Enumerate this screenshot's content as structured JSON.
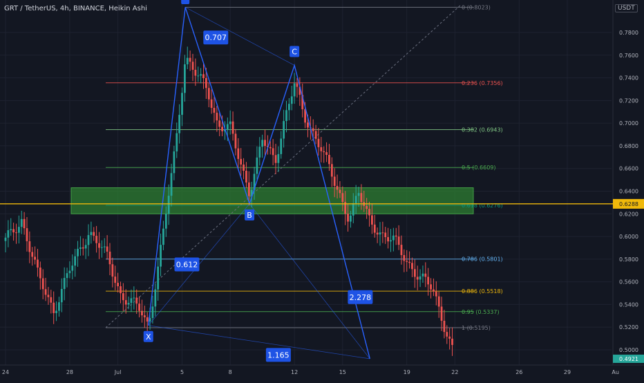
{
  "header": {
    "symbol": "GRT / TetherUS, 4h, BINANCE, Heikin Ashi"
  },
  "axis": {
    "unit": "USDT"
  },
  "chart_data": {
    "type": "candlestick",
    "price_ticks": [
      "0.7800",
      "0.7600",
      "0.7400",
      "0.7200",
      "0.7000",
      "0.6800",
      "0.6600",
      "0.6400",
      "0.6200",
      "0.6000",
      "0.5800",
      "0.5600",
      "0.5400",
      "0.5200",
      "0.5000"
    ],
    "price_tick_values": [
      0.78,
      0.76,
      0.74,
      0.72,
      0.7,
      0.68,
      0.66,
      0.64,
      0.62,
      0.6,
      0.58,
      0.56,
      0.54,
      0.52,
      0.5
    ],
    "time_ticks": [
      {
        "label": "24",
        "day": 24
      },
      {
        "label": "28",
        "day": 28
      },
      {
        "label": "Jul",
        "day": 31
      },
      {
        "label": "5",
        "day": 35
      },
      {
        "label": "8",
        "day": 38
      },
      {
        "label": "12",
        "day": 42
      },
      {
        "label": "15",
        "day": 45
      },
      {
        "label": "19",
        "day": 49
      },
      {
        "label": "22",
        "day": 52
      },
      {
        "label": "26",
        "day": 56
      },
      {
        "label": "29",
        "day": 59
      },
      {
        "label": "Au",
        "day": 62
      }
    ],
    "current_price": {
      "label": "0.6288",
      "value": 0.6288,
      "color": "#f0b90b"
    },
    "last_price": {
      "label": "0.4921",
      "value": 0.4921
    },
    "fib_levels": [
      {
        "label": "0 (0.8023)",
        "value": 0.8023,
        "color": "#787b86"
      },
      {
        "label": "0.236 (0.7356)",
        "value": 0.7356,
        "color": "#ef5350"
      },
      {
        "label": "0.382 (0.6943)",
        "value": 0.6943,
        "color": "#81c784"
      },
      {
        "label": "0.5 (0.6609)",
        "value": 0.6609,
        "color": "#4caf50"
      },
      {
        "label": "0.618 (0.6276)",
        "value": 0.6276,
        "color": "#089981"
      },
      {
        "label": "0.786 (0.5801)",
        "value": 0.5801,
        "color": "#64b5f6"
      },
      {
        "label": "0.886 (0.5518)",
        "value": 0.5518,
        "color": "#f0b90b"
      },
      {
        "label": "0.95 (0.5337)",
        "value": 0.5337,
        "color": "#4caf50"
      },
      {
        "label": "1 (0.5195)",
        "value": 0.5195,
        "color": "#787b86"
      }
    ],
    "zone": {
      "top": 0.643,
      "bottom": 0.62,
      "color": "#2e7d32"
    },
    "pattern_points": [
      {
        "label": "X",
        "day": 32.9,
        "value": 0.5215
      },
      {
        "label": "",
        "day": 35.2,
        "value": 0.8023
      },
      {
        "label": "B",
        "day": 39.2,
        "value": 0.6288
      },
      {
        "label": "C",
        "day": 42.0,
        "value": 0.751
      },
      {
        "label": "",
        "day": 46.7,
        "value": 0.4921
      }
    ],
    "ratios": [
      {
        "label": "0.707",
        "day": 37.1,
        "value": 0.7756
      },
      {
        "label": "0.612",
        "day": 35.3,
        "value": 0.5753
      },
      {
        "label": "2.278",
        "day": 46.1,
        "value": 0.5465
      },
      {
        "label": "1.165",
        "day": 41.0,
        "value": 0.4955
      }
    ]
  }
}
